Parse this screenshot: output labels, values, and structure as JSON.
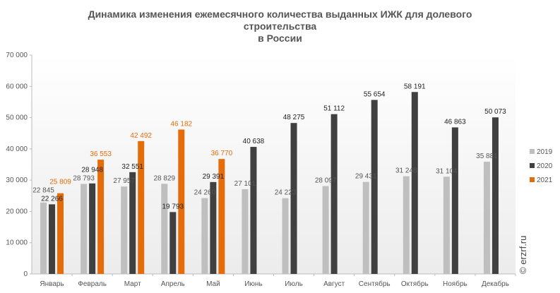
{
  "chart_data": {
    "type": "bar",
    "title_lines": [
      "Динамика изменения ежемесячного количества выданных ИЖК для долевого",
      "строительства",
      "в России"
    ],
    "categories": [
      "Январь",
      "Февраль",
      "Март",
      "Апрель",
      "Май",
      "Июнь",
      "Июль",
      "Август",
      "Сентябрь",
      "Октябрь",
      "Ноябрь",
      "Декабрь"
    ],
    "series": [
      {
        "name": "2019",
        "color": "#bfbfbf",
        "label_color": "#555555",
        "values": [
          22845,
          28793,
          27957,
          28829,
          24260,
          27101,
          24223,
          28097,
          29431,
          31248,
          31104,
          35881
        ]
      },
      {
        "name": "2020",
        "color": "#404040",
        "label_color": "#222222",
        "values": [
          22266,
          28948,
          32551,
          19793,
          29391,
          40638,
          48275,
          51112,
          55654,
          58191,
          46863,
          50073
        ]
      },
      {
        "name": "2021",
        "color": "#e46c0a",
        "label_color": "#e46c0a",
        "values": [
          25809,
          36553,
          42492,
          46182,
          36770,
          null,
          null,
          null,
          null,
          null,
          null,
          null
        ]
      }
    ],
    "ylim": [
      0,
      70000
    ],
    "yticks": [
      0,
      10000,
      20000,
      30000,
      40000,
      50000,
      60000,
      70000
    ],
    "ytick_labels": [
      "0",
      "10 000",
      "20 000",
      "30 000",
      "40 000",
      "50 000",
      "60 000",
      "70 000"
    ],
    "legend_position": "right",
    "watermark": "© erzrf.ru"
  }
}
